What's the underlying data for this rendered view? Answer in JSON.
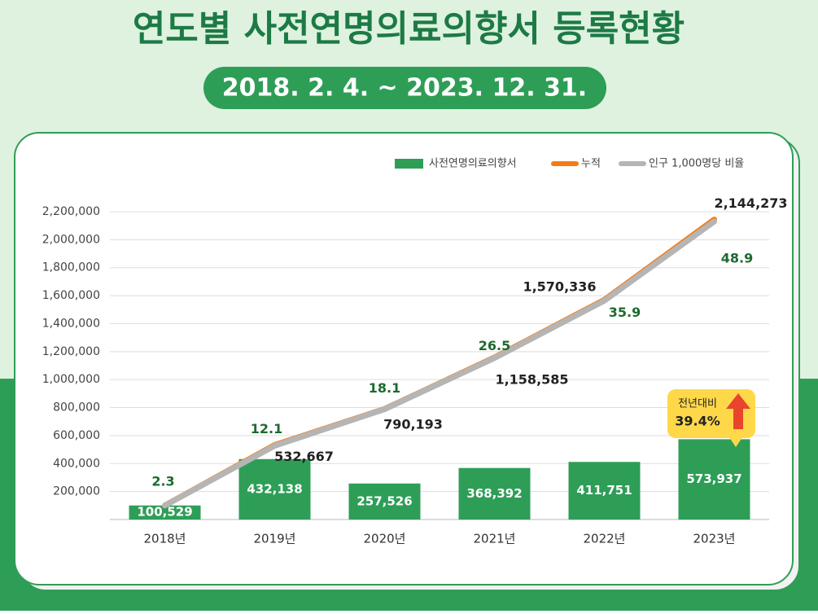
{
  "chart_data": {
    "type": "bar-line",
    "title": "연도별 사전연명의료의향서 등록현황",
    "subtitle": "2018. 2. 4. ~ 2023. 12. 31.",
    "categories": [
      "2018년",
      "2019년",
      "2020년",
      "2021년",
      "2022년",
      "2023년"
    ],
    "series": [
      {
        "name": "사전연명의료의향서",
        "type": "bar",
        "color": "#2e9e57",
        "values": [
          100529,
          432138,
          257526,
          368392,
          411751,
          573937
        ],
        "value_labels": [
          "100,529",
          "432,138",
          "257,526",
          "368,392",
          "411,751",
          "573,937"
        ]
      },
      {
        "name": "누적",
        "type": "line",
        "color": "#f57c14",
        "values": [
          100529,
          532667,
          790193,
          1158585,
          1570336,
          2144273
        ],
        "value_labels": [
          null,
          "532,667",
          "790,193",
          "1,158,585",
          "1,570,336",
          "2,144,273"
        ]
      },
      {
        "name": "인구 1,000명당 비율",
        "type": "line",
        "axis": "y2",
        "color": "#b5b5b5",
        "values": [
          2.3,
          12.1,
          18.1,
          26.5,
          35.9,
          48.9
        ]
      }
    ],
    "ylim": [
      0,
      2200000
    ],
    "yticks": [
      {
        "value": 200000,
        "label": "200,000"
      },
      {
        "value": 400000,
        "label": "400,000"
      },
      {
        "value": 600000,
        "label": "600,000"
      },
      {
        "value": 800000,
        "label": "800,000"
      },
      {
        "value": 1000000,
        "label": "1,000,000"
      },
      {
        "value": 1200000,
        "label": "1,200,000"
      },
      {
        "value": 1400000,
        "label": "1,400,000"
      },
      {
        "value": 1600000,
        "label": "1,600,000"
      },
      {
        "value": 1800000,
        "label": "1,800,000"
      },
      {
        "value": 2000000,
        "label": "2,000,000"
      },
      {
        "value": 2200000,
        "label": "2,200,000"
      }
    ],
    "y2lim": [
      0,
      50.5
    ],
    "grid": true,
    "legend": "top-right",
    "annotation": {
      "label": "전년대비",
      "value": "39.4%"
    }
  }
}
